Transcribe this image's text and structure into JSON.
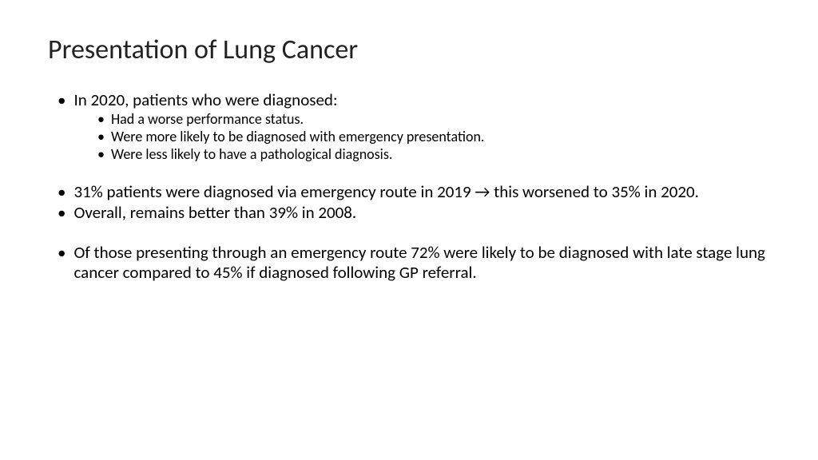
{
  "slide": {
    "title": "Presentation of Lung Cancer",
    "background_color": "#ffffff",
    "text_color": "#000000",
    "title_fontsize": 34,
    "body_fontsize": 21,
    "sub_fontsize": 18,
    "bullets": [
      {
        "text": "In 2020, patients who were diagnosed:",
        "children": [
          "Had a worse performance status.",
          "Were more likely to be diagnosed with emergency presentation.",
          "Were less likely to have a pathological diagnosis."
        ]
      },
      {
        "text": "31% patients were diagnosed via emergency route in 2019 → this worsened to 35% in 2020."
      },
      {
        "text": "Overall, remains better than 39% in 2008."
      },
      {
        "text": "Of those presenting through an emergency route 72% were likely to be diagnosed with late stage lung cancer compared to 45% if diagnosed following GP referral."
      }
    ]
  }
}
